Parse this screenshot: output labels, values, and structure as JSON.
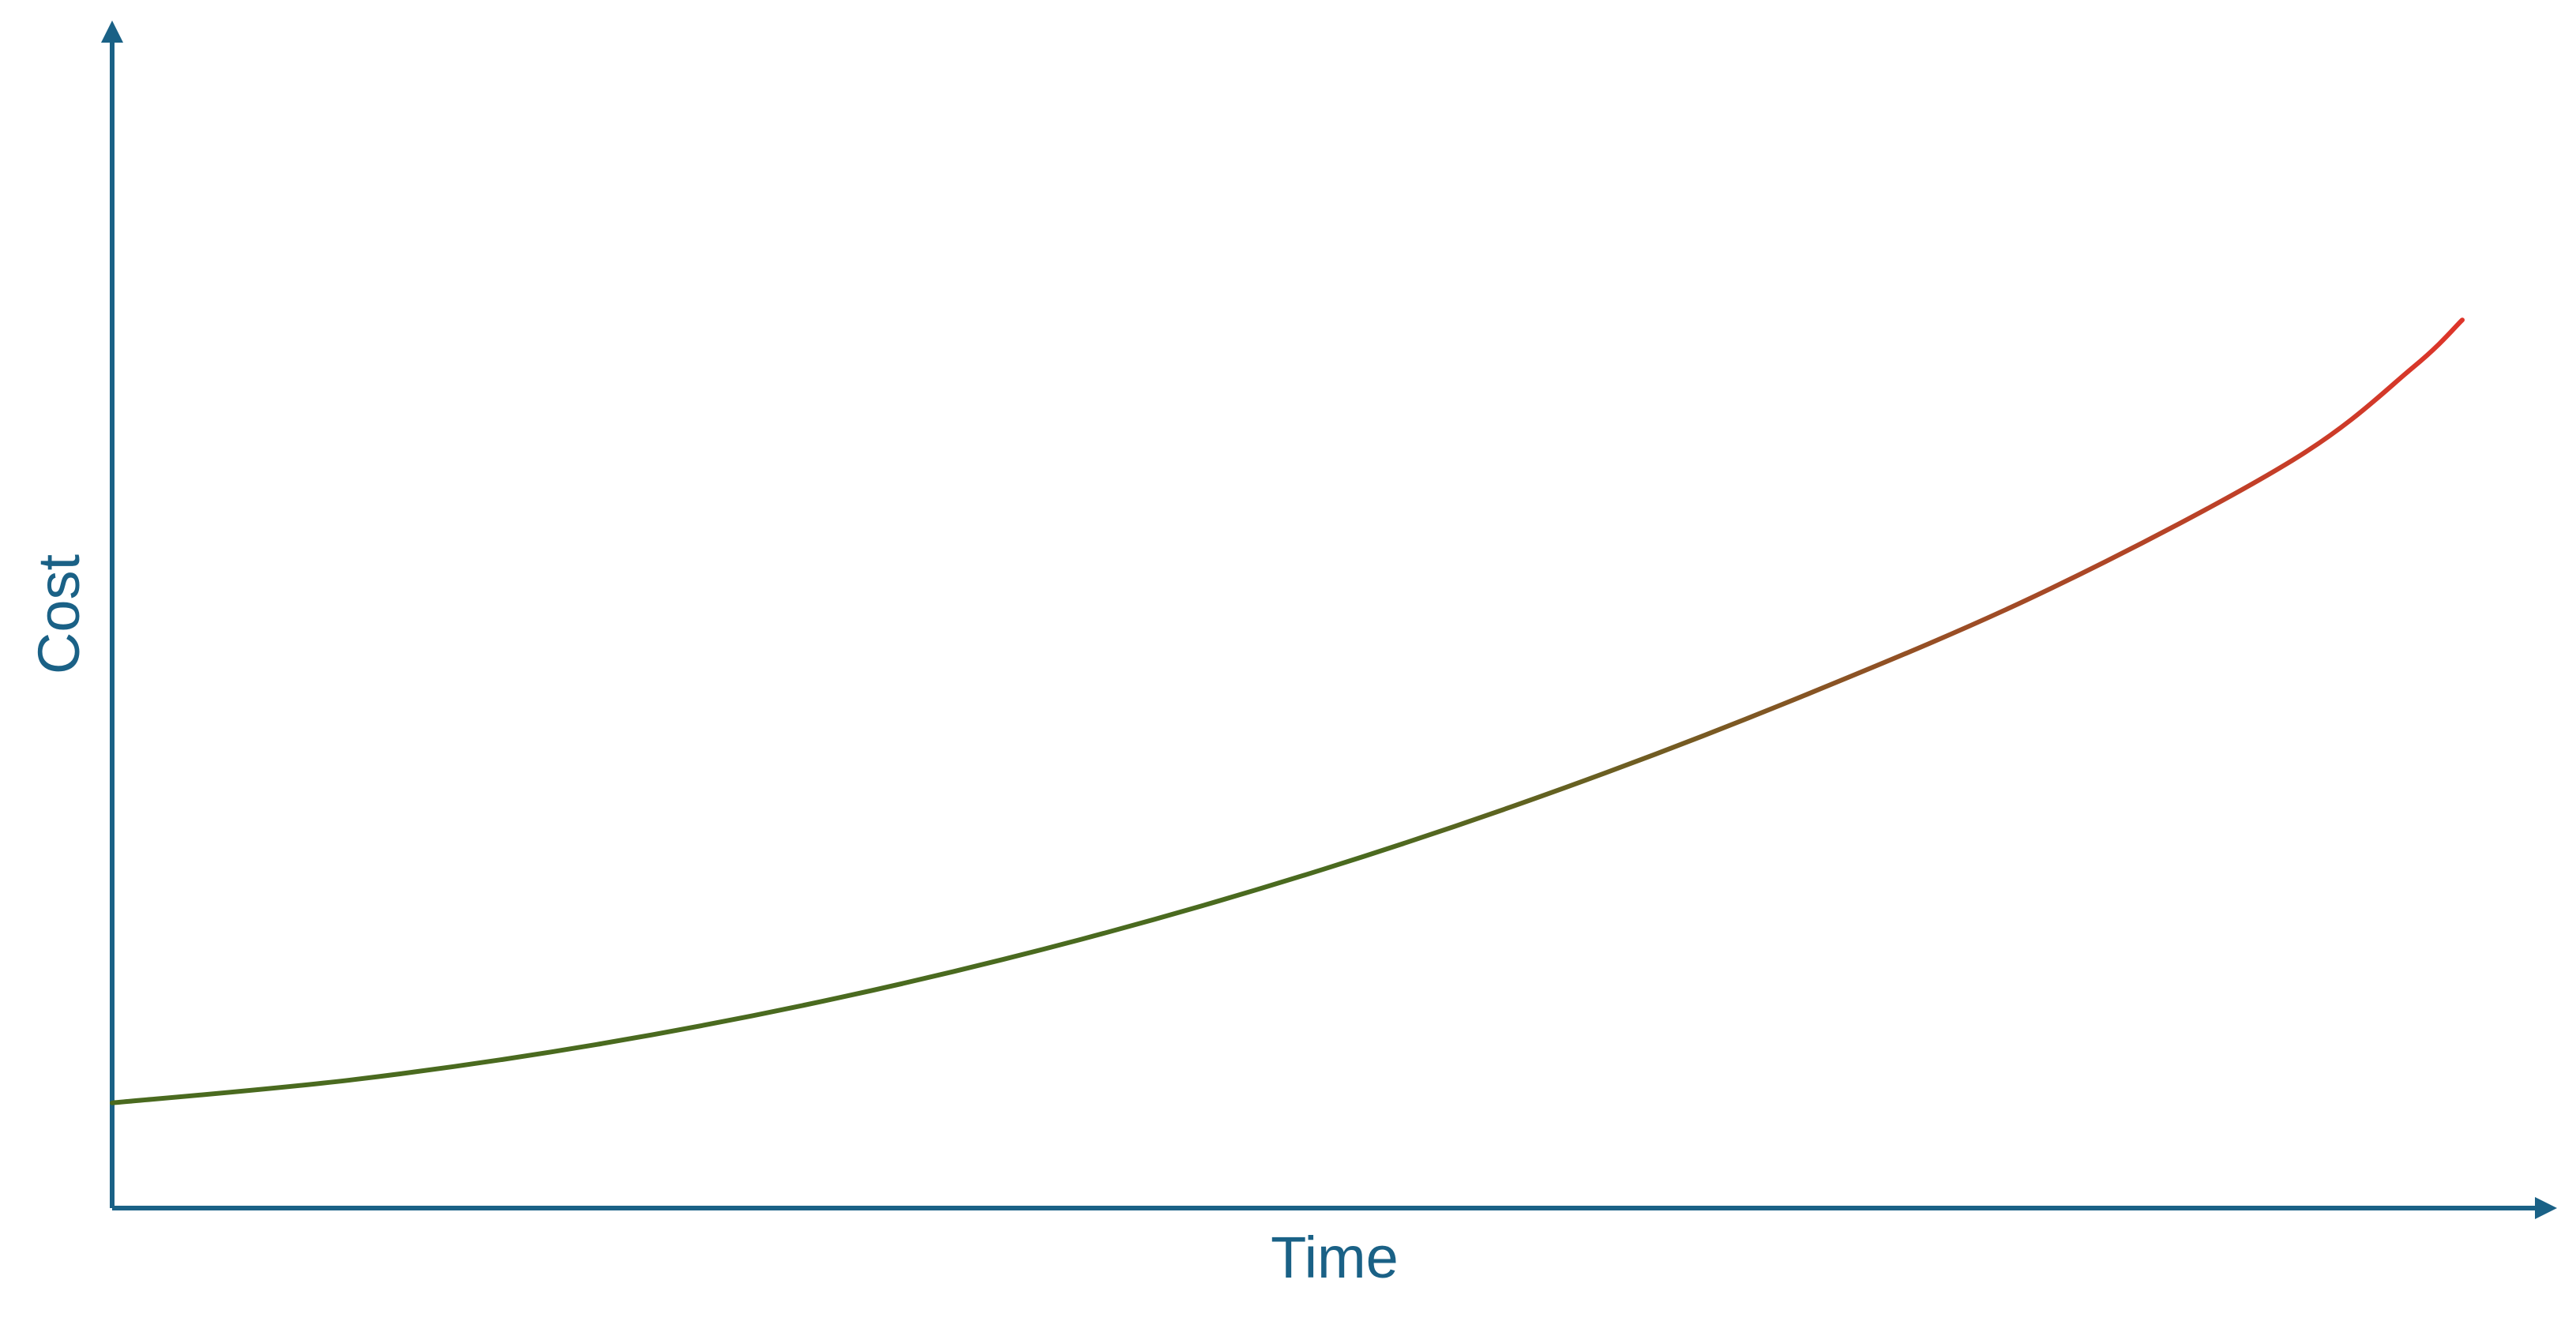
{
  "chart_data": {
    "type": "line",
    "title": "",
    "xlabel": "Time",
    "ylabel": "Cost",
    "grid": false,
    "legend": "none",
    "x_ticks": [],
    "y_ticks": [],
    "xlim": [
      0,
      1
    ],
    "ylim": [
      0,
      1
    ],
    "series": [
      {
        "x": [
          0.0,
          0.1,
          0.2,
          0.3,
          0.4,
          0.5,
          0.6,
          0.7,
          0.8,
          0.9,
          0.95,
          0.97
        ],
        "values": [
          0.09,
          0.11,
          0.14,
          0.18,
          0.23,
          0.29,
          0.36,
          0.44,
          0.53,
          0.64,
          0.72,
          0.76
        ],
        "color_start": "#4a6a1f",
        "color_end": "#e0342a"
      }
    ]
  }
}
